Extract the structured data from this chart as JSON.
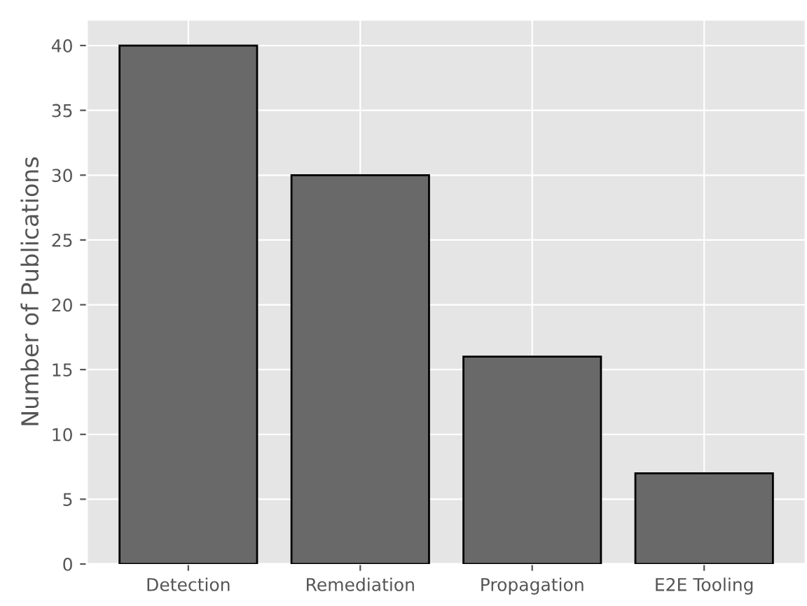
{
  "chart_data": {
    "type": "bar",
    "ylabel": "Number of Publications",
    "categories": [
      "Detection",
      "Remediation",
      "Propagation",
      "E2E Tooling"
    ],
    "values": [
      40,
      30,
      16,
      7
    ],
    "color": "#696969",
    "ylim": [
      0,
      42
    ],
    "yticks": [
      0,
      5,
      10,
      15,
      20,
      25,
      30,
      35,
      40
    ],
    "grid": true
  }
}
